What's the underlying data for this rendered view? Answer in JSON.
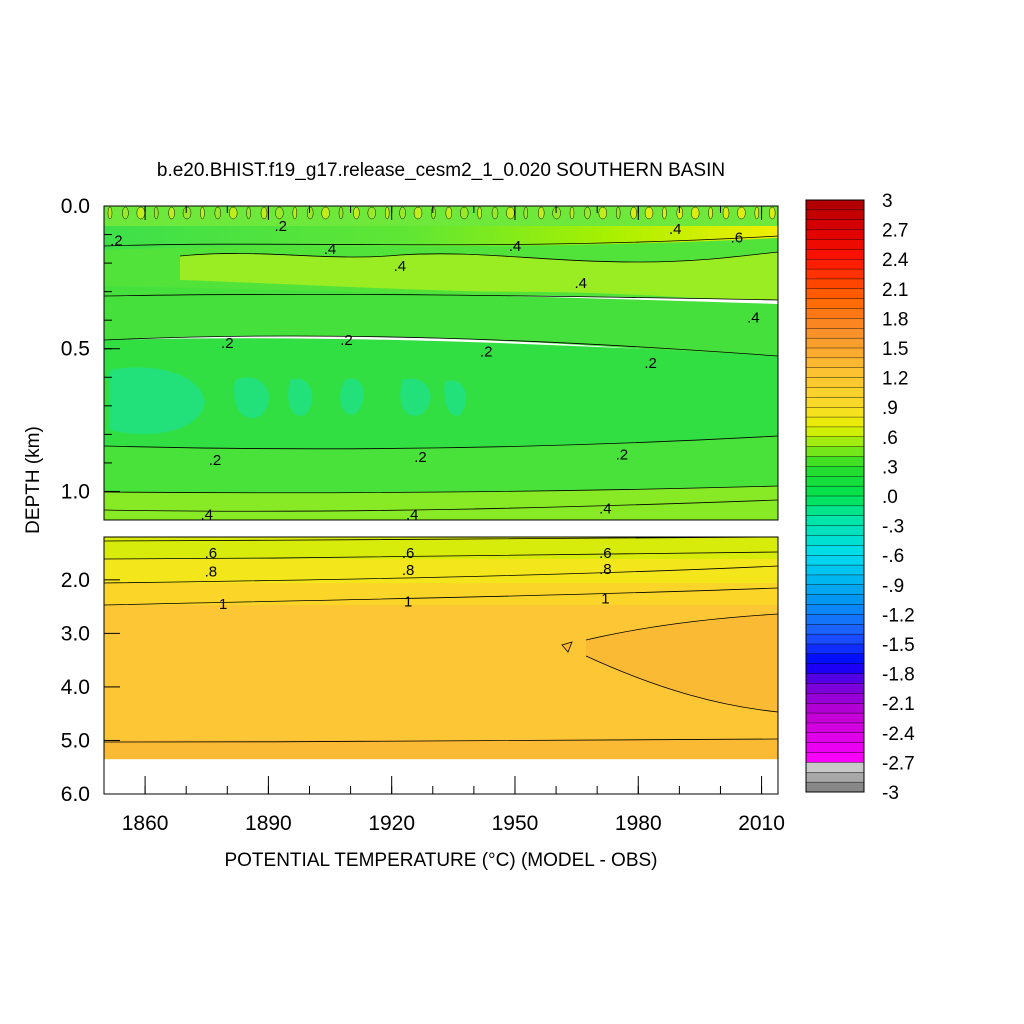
{
  "chart_data": {
    "type": "heatmap",
    "title": "b.e20.BHIST.f19_g17.release_cesm2_1_0.020 SOUTHERN BASIN",
    "xlabel": "POTENTIAL TEMPERATURE (°C) (MODEL - OBS)",
    "ylabel": "DEPTH (km)",
    "xlim": [
      1850,
      2014
    ],
    "x_ticks": [
      "1860",
      "1890",
      "1920",
      "1950",
      "1980",
      "2010"
    ],
    "x_tick_values": [
      1860,
      1890,
      1920,
      1950,
      1980,
      2010
    ],
    "upper_panel": {
      "ylim": [
        0.0,
        1.1
      ],
      "y_ticks": [
        "0.0",
        "0.5",
        "1.0"
      ],
      "y_tick_values": [
        0.0,
        0.5,
        1.0
      ]
    },
    "lower_panel": {
      "ylim": [
        1.2,
        6.0
      ],
      "y_ticks": [
        "2.0",
        "3.0",
        "4.0",
        "5.0",
        "6.0"
      ],
      "y_tick_values": [
        2.0,
        3.0,
        4.0,
        5.0,
        6.0
      ],
      "data_bottom_depth": 5.35
    },
    "colorbar": {
      "min": -3,
      "max": 3,
      "step": 0.1,
      "tick_labels": [
        "3",
        "2.7",
        "2.4",
        "2.1",
        "1.8",
        "1.5",
        "1.2",
        ".9",
        ".6",
        ".3",
        ".0",
        "-.3",
        "-.6",
        "-.9",
        "-1.2",
        "-1.5",
        "-1.8",
        "-2.1",
        "-2.4",
        "-2.7",
        "-3"
      ]
    },
    "contour_labels": [
      {
        "text": ".2",
        "x": 1853,
        "depth": 0.12
      },
      {
        "text": ".2",
        "x": 1893,
        "depth": 0.07
      },
      {
        "text": ".4",
        "x": 1905,
        "depth": 0.15
      },
      {
        "text": ".4",
        "x": 1922,
        "depth": 0.21
      },
      {
        "text": ".4",
        "x": 1950,
        "depth": 0.14
      },
      {
        "text": ".4",
        "x": 1966,
        "depth": 0.27
      },
      {
        "text": ".4",
        "x": 1989,
        "depth": 0.08
      },
      {
        "text": ".6",
        "x": 2004,
        "depth": 0.11
      },
      {
        "text": ".4",
        "x": 2008,
        "depth": 0.39
      },
      {
        "text": ".2",
        "x": 1880,
        "depth": 0.48
      },
      {
        "text": ".2",
        "x": 1909,
        "depth": 0.47
      },
      {
        "text": ".2",
        "x": 1943,
        "depth": 0.51
      },
      {
        "text": ".2",
        "x": 1983,
        "depth": 0.55
      },
      {
        "text": ".2",
        "x": 1877,
        "depth": 0.89
      },
      {
        "text": ".2",
        "x": 1927,
        "depth": 0.88
      },
      {
        "text": ".2",
        "x": 1976,
        "depth": 0.87
      },
      {
        "text": ".4",
        "x": 1875,
        "depth": 1.08
      },
      {
        "text": ".4",
        "x": 1925,
        "depth": 1.08
      },
      {
        "text": ".4",
        "x": 1972,
        "depth": 1.06
      },
      {
        "text": ".6",
        "x": 1876,
        "depth": 1.5
      },
      {
        "text": ".6",
        "x": 1924,
        "depth": 1.5
      },
      {
        "text": ".6",
        "x": 1972,
        "depth": 1.5
      },
      {
        "text": ".8",
        "x": 1876,
        "depth": 1.84
      },
      {
        "text": ".8",
        "x": 1924,
        "depth": 1.82
      },
      {
        "text": ".8",
        "x": 1972,
        "depth": 1.8
      },
      {
        "text": "1",
        "x": 1879,
        "depth": 2.45
      },
      {
        "text": "1",
        "x": 1924,
        "depth": 2.4
      },
      {
        "text": "1",
        "x": 1972,
        "depth": 2.35
      }
    ]
  }
}
